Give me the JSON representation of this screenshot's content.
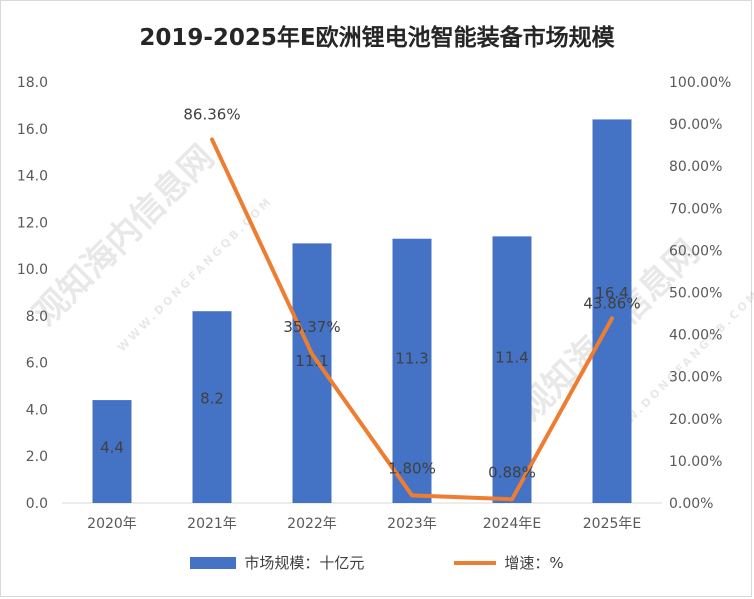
{
  "chart_data": {
    "type": "bar",
    "title": "2019-2025年E欧洲锂电池智能装备市场规模",
    "categories": [
      "2020年",
      "2021年",
      "2022年",
      "2023年",
      "2024年E",
      "2025年E"
    ],
    "series": [
      {
        "name": "市场规模：十亿元",
        "type": "bar",
        "axis": "left",
        "color": "#4472c4",
        "values": [
          4.4,
          8.2,
          11.1,
          11.3,
          11.4,
          16.4
        ],
        "labels": [
          "4.4",
          "8.2",
          "11.1",
          "11.3",
          "11.4",
          "16.4"
        ]
      },
      {
        "name": "增速：%",
        "type": "line",
        "axis": "right",
        "color": "#ed7d31",
        "values": [
          null,
          86.36,
          35.37,
          1.8,
          0.88,
          43.86
        ],
        "labels": [
          "",
          "86.36%",
          "35.37%",
          "1.80%",
          "0.88%",
          "43.86%"
        ]
      }
    ],
    "y_left": {
      "min": 0,
      "max": 18,
      "ticks": [
        "0.0",
        "2.0",
        "4.0",
        "6.0",
        "8.0",
        "10.0",
        "12.0",
        "14.0",
        "16.0",
        "18.0"
      ]
    },
    "y_right": {
      "min": 0,
      "max": 100,
      "ticks": [
        "0.00%",
        "10.00%",
        "20.00%",
        "30.00%",
        "40.00%",
        "50.00%",
        "60.00%",
        "70.00%",
        "80.00%",
        "90.00%",
        "100.00%"
      ]
    },
    "grid": false,
    "legend_position": "bottom"
  },
  "watermark": {
    "text": "观知海内信息网",
    "subtext": "WWW.DONGFANGQB.COM"
  }
}
